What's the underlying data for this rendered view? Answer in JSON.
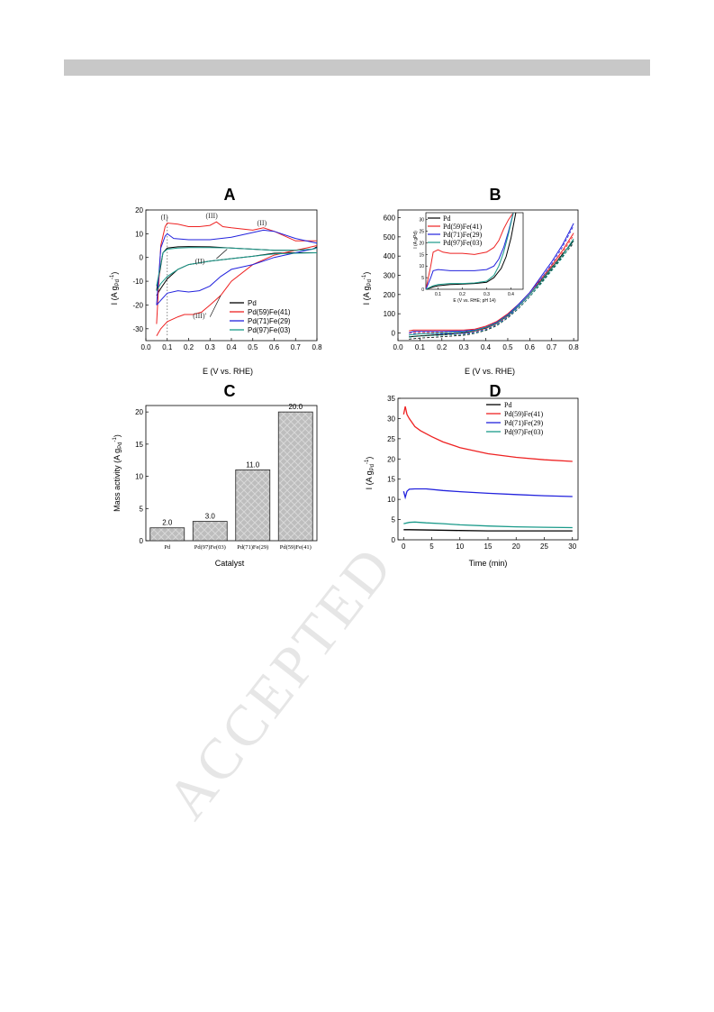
{
  "watermark": "ACCEPTED",
  "charts": {
    "A": {
      "label": "A",
      "xlabel": "E (V vs. RHE)",
      "ylabel": "I (A g",
      "ylabel_sub": "Pd",
      "ylabel_sup": "-1",
      "ylabel_end": ")",
      "xticks": [
        "0.0",
        "0.1",
        "0.2",
        "0.3",
        "0.4",
        "0.5",
        "0.6",
        "0.7",
        "0.8"
      ],
      "yticks": [
        "20",
        "10",
        "0",
        "-10",
        "-20",
        "-30"
      ],
      "legend": [
        "Pd",
        "Pd(59)Fe(41)",
        "Pd(71)Fe(29)",
        "Pd(97)Fe(03)"
      ],
      "annotations": [
        "(I)",
        "(III)",
        "(II)",
        "(II)",
        "(III)'"
      ]
    },
    "B": {
      "label": "B",
      "xlabel": "E (V vs. RHE)",
      "ylabel": "I (A g",
      "ylabel_sub": "Pd",
      "ylabel_sup": "-1",
      "ylabel_end": ")",
      "xticks": [
        "0.0",
        "0.1",
        "0.2",
        "0.3",
        "0.4",
        "0.5",
        "0.6",
        "0.7",
        "0.8"
      ],
      "yticks": [
        "600",
        "500",
        "400",
        "300",
        "200",
        "100",
        "0"
      ],
      "legend": [
        "Pd",
        "Pd(59)Fe(41)",
        "Pd(71)Fe(29)",
        "Pd(97)Fe(03)"
      ],
      "inset_xlabel": "E (V vs. RHE; pH 14)",
      "inset_ylabel": "I (A g",
      "inset_ylabel_sub": "Pd",
      "inset_ylabel_end": ")",
      "inset_xticks": [
        "0.1",
        "0.2",
        "0.3",
        "0.4"
      ],
      "inset_yticks": [
        "30",
        "25",
        "20",
        "15",
        "10",
        "5",
        "0"
      ]
    },
    "C": {
      "label": "C",
      "xlabel": "Catalyst",
      "ylabel": "Mass activity (A g",
      "ylabel_sub": "Pd",
      "ylabel_sup": "-1",
      "ylabel_end": ")",
      "yticks": [
        "0",
        "5",
        "10",
        "15",
        "20"
      ],
      "value_labels": [
        "2.0",
        "3.0",
        "11.0",
        "20.0"
      ]
    },
    "D": {
      "label": "D",
      "xlabel": "Time (min)",
      "ylabel": "I (A g",
      "ylabel_sub": "Pd",
      "ylabel_sup": "-1",
      "ylabel_end": ")",
      "xticks": [
        "0",
        "5",
        "10",
        "15",
        "20",
        "25",
        "30"
      ],
      "yticks": [
        "0",
        "5",
        "10",
        "15",
        "20",
        "25",
        "30",
        "35"
      ],
      "legend": [
        "Pd",
        "Pd(59)Fe(41)",
        "Pd(71)Fe(29)",
        "Pd(97)Fe(03)"
      ]
    }
  },
  "colors": {
    "Pd": "#000000",
    "PdFe41": "#ee2222",
    "PdFe29": "#2222dd",
    "PdFe03": "#1a9a8a",
    "bar": "#b9b9b9"
  },
  "chart_data": [
    {
      "type": "line",
      "panel": "A",
      "xlim": [
        0.0,
        0.8
      ],
      "ylim": [
        -35,
        20
      ],
      "series": [
        {
          "name": "Pd",
          "forward": {
            "x": [
              0.05,
              0.08,
              0.1,
              0.15,
              0.2,
              0.3,
              0.4,
              0.5,
              0.6,
              0.7,
              0.78,
              0.8
            ],
            "y": [
              -14,
              2,
              4,
              4.5,
              4.6,
              4.5,
              4,
              3.5,
              3,
              3,
              3.5,
              4.5
            ]
          },
          "reverse": {
            "x": [
              0.8,
              0.75,
              0.7,
              0.6,
              0.5,
              0.4,
              0.3,
              0.2,
              0.15,
              0.1,
              0.07,
              0.05
            ],
            "y": [
              2,
              2,
              2,
              1.8,
              0.5,
              -0.5,
              -1.5,
              -3,
              -5,
              -9,
              -13,
              -16
            ]
          }
        },
        {
          "name": "Pd(59)Fe(41)",
          "forward": {
            "x": [
              0.05,
              0.07,
              0.09,
              0.1,
              0.15,
              0.2,
              0.25,
              0.3,
              0.33,
              0.36,
              0.4,
              0.5,
              0.55,
              0.6,
              0.7,
              0.75,
              0.8
            ],
            "y": [
              -28,
              5,
              13,
              14.5,
              14,
              13,
              13,
              13.5,
              15,
              13,
              12.5,
              11.5,
              12.5,
              11,
              7,
              7,
              7
            ]
          },
          "reverse": {
            "x": [
              0.8,
              0.75,
              0.7,
              0.6,
              0.5,
              0.4,
              0.35,
              0.3,
              0.26,
              0.22,
              0.18,
              0.15,
              0.1,
              0.07,
              0.05
            ],
            "y": [
              5,
              4,
              3,
              1,
              -3,
              -10,
              -16,
              -20,
              -23,
              -24,
              -24,
              -25,
              -27,
              -30,
              -33
            ]
          }
        },
        {
          "name": "Pd(71)Fe(29)",
          "forward": {
            "x": [
              0.05,
              0.07,
              0.09,
              0.1,
              0.13,
              0.2,
              0.3,
              0.4,
              0.5,
              0.55,
              0.6,
              0.7,
              0.8
            ],
            "y": [
              -20,
              4,
              9,
              10,
              8,
              7.5,
              7.5,
              8.5,
              10.5,
              11.5,
              11,
              8,
              6
            ]
          },
          "reverse": {
            "x": [
              0.8,
              0.7,
              0.6,
              0.5,
              0.45,
              0.4,
              0.35,
              0.3,
              0.25,
              0.2,
              0.15,
              0.1,
              0.07,
              0.05
            ],
            "y": [
              4,
              2,
              0,
              -3,
              -4,
              -5,
              -8,
              -12,
              -14,
              -14.5,
              -14,
              -15,
              -18,
              -20
            ]
          }
        },
        {
          "name": "Pd(97)Fe(03)",
          "forward": {
            "x": [
              0.05,
              0.08,
              0.1,
              0.15,
              0.2,
              0.3,
              0.4,
              0.5,
              0.6,
              0.7,
              0.78,
              0.8
            ],
            "y": [
              -12,
              2,
              3.5,
              4,
              4.2,
              4.2,
              4,
              3.5,
              3,
              3,
              3.5,
              4
            ]
          },
          "reverse": {
            "x": [
              0.8,
              0.7,
              0.6,
              0.5,
              0.4,
              0.3,
              0.2,
              0.15,
              0.1,
              0.07,
              0.05
            ],
            "y": [
              2,
              1.8,
              1.5,
              0.5,
              -0.5,
              -1.5,
              -3,
              -5,
              -8,
              -11,
              -14
            ]
          }
        }
      ]
    },
    {
      "type": "line",
      "panel": "B",
      "xlim": [
        0.0,
        0.8
      ],
      "ylim": [
        -40,
        640
      ],
      "series": [
        {
          "name": "Pd",
          "x": [
            0.05,
            0.1,
            0.2,
            0.3,
            0.35,
            0.4,
            0.45,
            0.5,
            0.55,
            0.6,
            0.65,
            0.7,
            0.75,
            0.8
          ],
          "y": [
            -20,
            -15,
            -8,
            0,
            10,
            25,
            50,
            90,
            140,
            200,
            270,
            340,
            410,
            480
          ]
        },
        {
          "name": "Pd(59)Fe(41)",
          "x": [
            0.05,
            0.07,
            0.1,
            0.2,
            0.3,
            0.35,
            0.4,
            0.45,
            0.5,
            0.55,
            0.6,
            0.65,
            0.7,
            0.75,
            0.8
          ],
          "y": [
            10,
            15,
            15,
            15,
            15,
            20,
            35,
            60,
            100,
            150,
            210,
            280,
            350,
            430,
            520
          ]
        },
        {
          "name": "Pd(71)Fe(29)",
          "x": [
            0.05,
            0.07,
            0.1,
            0.2,
            0.3,
            0.35,
            0.4,
            0.45,
            0.5,
            0.55,
            0.6,
            0.65,
            0.7,
            0.75,
            0.8
          ],
          "y": [
            0,
            8,
            8,
            8,
            10,
            15,
            30,
            55,
            95,
            150,
            210,
            290,
            370,
            460,
            570
          ]
        },
        {
          "name": "Pd(97)Fe(03)",
          "x": [
            0.05,
            0.1,
            0.2,
            0.3,
            0.35,
            0.4,
            0.45,
            0.5,
            0.55,
            0.6,
            0.65,
            0.7,
            0.75,
            0.8
          ],
          "y": [
            -10,
            -5,
            0,
            5,
            12,
            28,
            52,
            92,
            142,
            200,
            265,
            335,
            405,
            490
          ]
        }
      ],
      "inset": {
        "xlim": [
          0.05,
          0.45
        ],
        "ylim": [
          0,
          33
        ],
        "series": [
          {
            "name": "Pd",
            "x": [
              0.05,
              0.08,
              0.1,
              0.15,
              0.2,
              0.25,
              0.3,
              0.33,
              0.36,
              0.38,
              0.4,
              0.42
            ],
            "y": [
              0,
              1,
              1.5,
              2,
              2.2,
              2.5,
              3,
              5,
              9,
              14,
              22,
              33
            ]
          },
          {
            "name": "Pd(59)Fe(41)",
            "x": [
              0.05,
              0.07,
              0.08,
              0.1,
              0.12,
              0.15,
              0.2,
              0.25,
              0.3,
              0.33,
              0.35,
              0.37,
              0.39,
              0.41
            ],
            "y": [
              0,
              10,
              16,
              17,
              16,
              15.5,
              15.5,
              15,
              16,
              18,
              21,
              26,
              30,
              33
            ]
          },
          {
            "name": "Pd(71)Fe(29)",
            "x": [
              0.05,
              0.07,
              0.08,
              0.1,
              0.15,
              0.2,
              0.25,
              0.3,
              0.33,
              0.35,
              0.37,
              0.39,
              0.41
            ],
            "y": [
              0,
              5,
              8,
              8.5,
              8,
              8,
              8,
              8.5,
              10,
              13,
              18,
              25,
              33
            ]
          },
          {
            "name": "Pd(97)Fe(03)",
            "x": [
              0.05,
              0.08,
              0.1,
              0.15,
              0.2,
              0.25,
              0.3,
              0.33,
              0.35,
              0.37,
              0.39,
              0.41
            ],
            "y": [
              0,
              1.5,
              2,
              2.5,
              2.5,
              2.7,
              3.5,
              6,
              10,
              16,
              24,
              33
            ]
          }
        ]
      }
    },
    {
      "type": "bar",
      "panel": "C",
      "categories": [
        "Pd",
        "Pd(97)Fe(03)",
        "Pd(71)Fe(29)",
        "Pd(59)Fe(41)"
      ],
      "values": [
        2.0,
        3.0,
        11.0,
        20.0
      ],
      "ylim": [
        0,
        21
      ]
    },
    {
      "type": "line",
      "panel": "D",
      "xlim": [
        -1,
        31
      ],
      "ylim": [
        0,
        35
      ],
      "series": [
        {
          "name": "Pd",
          "x": [
            0,
            1,
            5,
            10,
            15,
            20,
            25,
            30
          ],
          "y": [
            2.5,
            2.5,
            2.4,
            2.3,
            2.2,
            2.2,
            2.2,
            2.2
          ]
        },
        {
          "name": "Pd(59)Fe(41)",
          "x": [
            0,
            0.3,
            0.6,
            1,
            2,
            3,
            5,
            7,
            10,
            15,
            20,
            25,
            30
          ],
          "y": [
            31,
            33,
            31,
            30,
            28,
            27,
            25.5,
            24.2,
            22.8,
            21.3,
            20.4,
            19.8,
            19.4
          ]
        },
        {
          "name": "Pd(71)Fe(29)",
          "x": [
            0,
            0.3,
            0.6,
            1,
            2,
            4,
            7,
            10,
            15,
            20,
            25,
            30
          ],
          "y": [
            12,
            10.5,
            12,
            12.5,
            12.6,
            12.6,
            12.2,
            11.9,
            11.5,
            11.2,
            10.9,
            10.7
          ]
        },
        {
          "name": "Pd(97)Fe(03)",
          "x": [
            0,
            1,
            2,
            4,
            7,
            10,
            15,
            20,
            25,
            30
          ],
          "y": [
            4,
            4.3,
            4.4,
            4.2,
            4,
            3.7,
            3.4,
            3.2,
            3.1,
            3
          ]
        }
      ]
    }
  ]
}
